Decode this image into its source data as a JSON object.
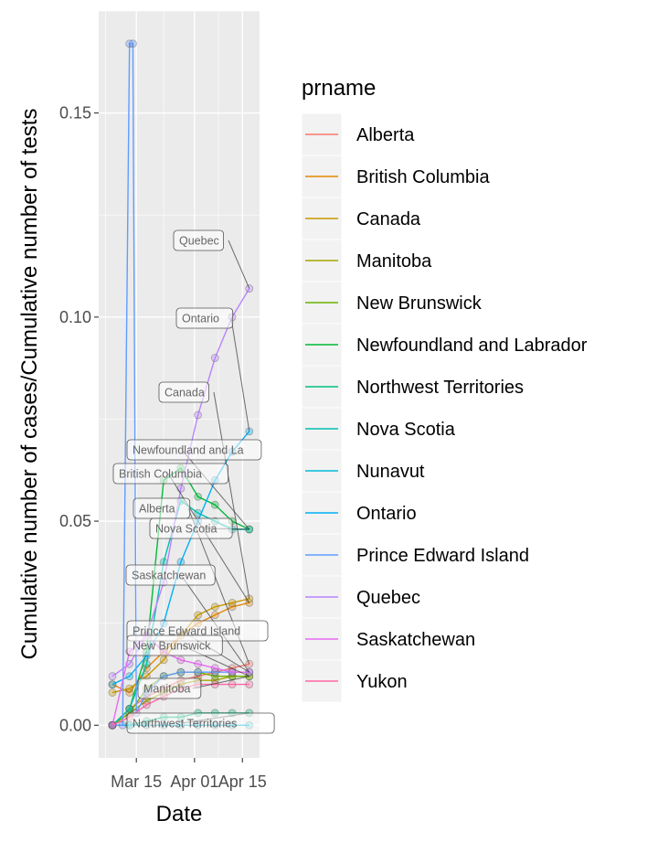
{
  "chart_data": {
    "type": "line",
    "title": "",
    "xlabel": "Date",
    "ylabel": "Cumulative number of cases/Cumulative number of tests",
    "x_ticks": [
      "Mar 15",
      "Apr 01",
      "Apr 15"
    ],
    "y_ticks": [
      "0.00",
      "0.05",
      "0.10",
      "0.15"
    ],
    "xlim": [
      "2020-03-04",
      "2020-04-20"
    ],
    "ylim": [
      -0.008,
      0.175
    ],
    "grid": true,
    "legend": {
      "title": "prname",
      "position": "right"
    },
    "series": [
      {
        "name": "Alberta",
        "color": "#F8766D",
        "dates": [
          "2020-03-08",
          "2020-03-13",
          "2020-03-18",
          "2020-03-23",
          "2020-03-28",
          "2020-04-02",
          "2020-04-07",
          "2020-04-12",
          "2020-04-17"
        ],
        "values": [
          0.0,
          0.004,
          0.007,
          0.009,
          0.011,
          0.012,
          0.013,
          0.014,
          0.015
        ]
      },
      {
        "name": "British Columbia",
        "color": "#E58700",
        "dates": [
          "2020-03-08",
          "2020-03-13",
          "2020-03-18",
          "2020-03-23",
          "2020-03-28",
          "2020-04-02",
          "2020-04-07",
          "2020-04-12",
          "2020-04-17"
        ],
        "values": [
          0.01,
          0.008,
          0.014,
          0.018,
          0.022,
          0.025,
          0.027,
          0.029,
          0.03
        ]
      },
      {
        "name": "Canada",
        "color": "#C99800",
        "dates": [
          "2020-03-08",
          "2020-03-13",
          "2020-03-18",
          "2020-03-23",
          "2020-03-28",
          "2020-04-02",
          "2020-04-07",
          "2020-04-12",
          "2020-04-17"
        ],
        "values": [
          0.008,
          0.009,
          0.012,
          0.016,
          0.022,
          0.027,
          0.029,
          0.03,
          0.031
        ]
      },
      {
        "name": "Manitoba",
        "color": "#A3A500",
        "dates": [
          "2020-03-08",
          "2020-03-13",
          "2020-03-18",
          "2020-03-23",
          "2020-03-28",
          "2020-04-02",
          "2020-04-07",
          "2020-04-12",
          "2020-04-17"
        ],
        "values": [
          0.0,
          0.003,
          0.006,
          0.008,
          0.01,
          0.011,
          0.011,
          0.012,
          0.012
        ]
      },
      {
        "name": "New Brunswick",
        "color": "#6BB100",
        "dates": [
          "2020-03-08",
          "2020-03-13",
          "2020-03-18",
          "2020-03-23",
          "2020-03-28",
          "2020-04-02",
          "2020-04-07",
          "2020-04-12",
          "2020-04-17"
        ],
        "values": [
          0.0,
          0.003,
          0.009,
          0.012,
          0.013,
          0.013,
          0.012,
          0.012,
          0.012
        ]
      },
      {
        "name": "Newfoundland and Labrador",
        "color": "#00BA38",
        "dates": [
          "2020-03-08",
          "2020-03-13",
          "2020-03-18",
          "2020-03-23",
          "2020-03-28",
          "2020-04-02",
          "2020-04-07",
          "2020-04-12",
          "2020-04-17"
        ],
        "values": [
          0.0,
          0.004,
          0.018,
          0.06,
          0.063,
          0.056,
          0.054,
          0.05,
          0.048
        ]
      },
      {
        "name": "Northwest Territories",
        "color": "#00BF7D",
        "dates": [
          "2020-03-08",
          "2020-03-13",
          "2020-03-18",
          "2020-03-23",
          "2020-03-28",
          "2020-04-02",
          "2020-04-07",
          "2020-04-12",
          "2020-04-17"
        ],
        "values": [
          0.0,
          0.0,
          0.001,
          0.002,
          0.002,
          0.003,
          0.003,
          0.003,
          0.003
        ]
      },
      {
        "name": "Nova Scotia",
        "color": "#00C0AF",
        "dates": [
          "2020-03-08",
          "2020-03-13",
          "2020-03-18",
          "2020-03-23",
          "2020-03-28",
          "2020-04-02",
          "2020-04-07",
          "2020-04-12",
          "2020-04-17"
        ],
        "values": [
          0.0,
          0.004,
          0.015,
          0.04,
          0.055,
          0.052,
          0.05,
          0.048,
          0.048
        ]
      },
      {
        "name": "Nunavut",
        "color": "#00BCD8",
        "dates": [
          "2020-03-08",
          "2020-03-13",
          "2020-03-18",
          "2020-03-23",
          "2020-03-28",
          "2020-04-02",
          "2020-04-07",
          "2020-04-12",
          "2020-04-17"
        ],
        "values": [
          0.0,
          0.0,
          0.0,
          0.0,
          0.0,
          0.0,
          0.0,
          0.0,
          0.0
        ]
      },
      {
        "name": "Ontario",
        "color": "#00B0F6",
        "dates": [
          "2020-03-08",
          "2020-03-13",
          "2020-03-18",
          "2020-03-23",
          "2020-03-28",
          "2020-04-02",
          "2020-04-07",
          "2020-04-12",
          "2020-04-17"
        ],
        "values": [
          0.01,
          0.012,
          0.017,
          0.025,
          0.04,
          0.05,
          0.06,
          0.067,
          0.072
        ]
      },
      {
        "name": "Prince Edward Island",
        "color": "#619CFF",
        "dates": [
          "2020-03-08",
          "2020-03-11",
          "2020-03-13",
          "2020-03-14",
          "2020-03-15",
          "2020-03-18",
          "2020-03-23",
          "2020-03-28",
          "2020-04-02",
          "2020-04-07",
          "2020-04-12",
          "2020-04-17"
        ],
        "values": [
          0.0,
          0.0,
          0.167,
          0.167,
          0.003,
          0.008,
          0.012,
          0.013,
          0.013,
          0.013,
          0.013,
          0.013
        ]
      },
      {
        "name": "Quebec",
        "color": "#B983FF",
        "dates": [
          "2020-03-08",
          "2020-03-13",
          "2020-03-18",
          "2020-03-23",
          "2020-03-28",
          "2020-04-02",
          "2020-04-07",
          "2020-04-12",
          "2020-04-17"
        ],
        "values": [
          0.012,
          0.015,
          0.022,
          0.035,
          0.058,
          0.076,
          0.09,
          0.1,
          0.107
        ]
      },
      {
        "name": "Saskatchewan",
        "color": "#E76BF3",
        "dates": [
          "2020-03-08",
          "2020-03-13",
          "2020-03-18",
          "2020-03-23",
          "2020-03-28",
          "2020-04-02",
          "2020-04-07",
          "2020-04-12",
          "2020-04-17"
        ],
        "values": [
          0.0,
          0.018,
          0.022,
          0.018,
          0.016,
          0.015,
          0.014,
          0.013,
          0.013
        ]
      },
      {
        "name": "Yukon",
        "color": "#FF67A4",
        "dates": [
          "2020-03-08",
          "2020-03-13",
          "2020-03-18",
          "2020-03-23",
          "2020-03-28",
          "2020-04-02",
          "2020-04-07",
          "2020-04-12",
          "2020-04-17"
        ],
        "values": [
          0.0,
          0.002,
          0.005,
          0.007,
          0.009,
          0.01,
          0.01,
          0.01,
          0.01
        ]
      }
    ],
    "annotations": [
      {
        "label": "Quebec",
        "series": "Quebec"
      },
      {
        "label": "Ontario",
        "series": "Ontario"
      },
      {
        "label": "Canada",
        "series": "Canada"
      },
      {
        "label": "Newfoundland and La",
        "series": "Newfoundland and Labrador"
      },
      {
        "label": "British Columbia",
        "series": "British Columbia"
      },
      {
        "label": "Alberta",
        "series": "Alberta"
      },
      {
        "label": "Nova Scotia",
        "series": "Nova Scotia"
      },
      {
        "label": "Saskatchewan",
        "series": "Saskatchewan"
      },
      {
        "label": "Prince Edward Island",
        "series": "Prince Edward Island"
      },
      {
        "label": "New Brunswick",
        "series": "New Brunswick"
      },
      {
        "label": "Manitoba",
        "series": "Manitoba"
      },
      {
        "label": "Northwest Territories",
        "series": "Northwest Territories"
      }
    ]
  }
}
